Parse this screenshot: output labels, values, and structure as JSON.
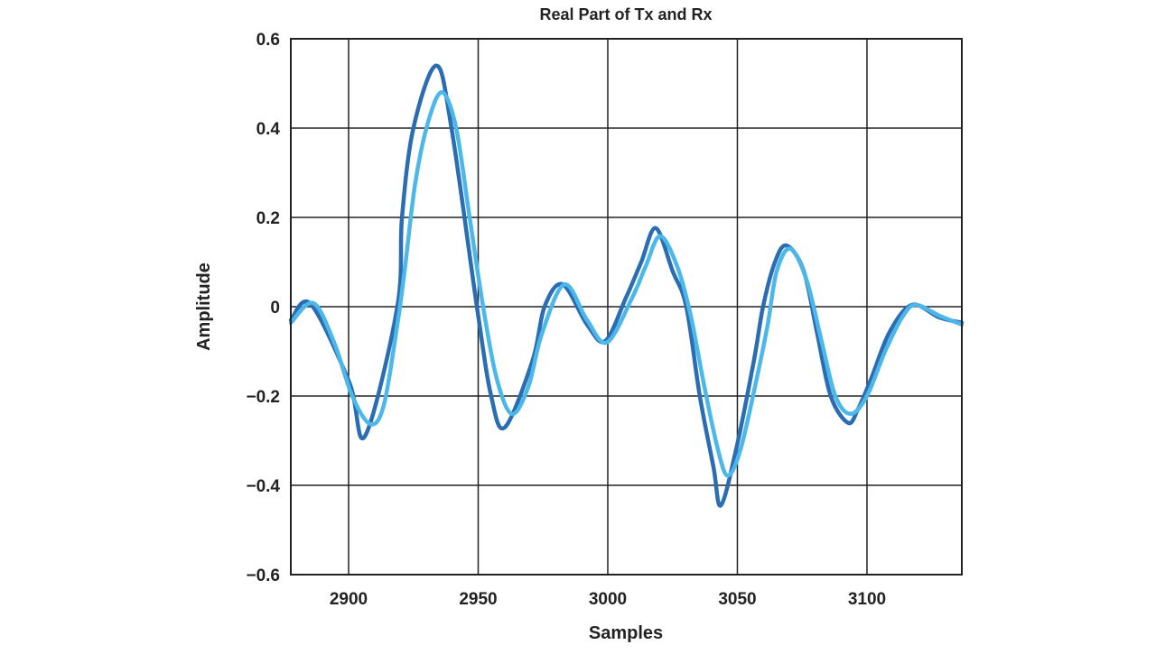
{
  "chart_data": {
    "type": "line",
    "title": "Real Part of Tx and Rx",
    "xlabel": "Samples",
    "ylabel": "Amplitude",
    "xlim": [
      2877.7,
      3136.6
    ],
    "ylim": [
      -0.6,
      0.6
    ],
    "grid": true,
    "xticks": [
      2900,
      2950,
      3000,
      3050,
      3100
    ],
    "xtick_labels": [
      "2900",
      "2950",
      "3000",
      "3050",
      "3100"
    ],
    "yticks": [
      0.6,
      0.4,
      0.2,
      0,
      -0.2,
      -0.4,
      -0.6
    ],
    "ytick_labels": [
      "0.6",
      "0.4",
      "0.2",
      "0",
      "−0.2",
      "−0.4",
      "−0.6"
    ],
    "series": [
      {
        "color": "#2a6db3",
        "x": [
          2877.7,
          2885.4,
          2900.3,
          2906.3,
          2918.8,
          2920.6,
          2925,
          2933.8,
          2939.7,
          2949.5,
          2955,
          2960.3,
          2971,
          2975.6,
          2982.6,
          2992,
          2999,
          3007,
          3012.9,
          3018.5,
          3025,
          3030.3,
          3035.5,
          3040.8,
          3043.6,
          3049.5,
          3056.4,
          3059.9,
          3064.5,
          3069,
          3075.6,
          3080.8,
          3086,
          3092.7,
          3096.5,
          3101.7,
          3108.7,
          3117.4,
          3127.9,
          3136.6
        ],
        "y": [
          -0.03,
          0.006,
          -0.17,
          -0.29,
          0,
          0.2,
          0.4,
          0.54,
          0.4,
          0,
          -0.2,
          -0.27,
          -0.12,
          0,
          0.05,
          -0.04,
          -0.077,
          0.02,
          0.1,
          0.176,
          0.08,
          0,
          -0.2,
          -0.36,
          -0.445,
          -0.32,
          -0.12,
          0,
          0.1,
          0.137,
          0.08,
          -0.06,
          -0.2,
          -0.26,
          -0.23,
          -0.16,
          -0.057,
          0.004,
          -0.024,
          -0.036
        ]
      },
      {
        "color": "#4cb7e9",
        "x": [
          2877.7,
          2886.4,
          2894.4,
          2901.4,
          2908.4,
          2913.6,
          2918.8,
          2921.6,
          2925.8,
          2931,
          2936.2,
          2941.5,
          2946.7,
          2951.9,
          2957.1,
          2963,
          2969.3,
          2974.6,
          2983.3,
          2992,
          2999.7,
          3009.4,
          3014.6,
          3020.2,
          3026.8,
          3032,
          3037.3,
          3042.5,
          3046.3,
          3051.2,
          3057.5,
          3061.7,
          3065.2,
          3070.4,
          3076.7,
          3082.6,
          3087.8,
          3093.7,
          3100,
          3107,
          3114,
          3119,
          3127.9,
          3136.6
        ],
        "y": [
          -0.036,
          0.008,
          -0.08,
          -0.2,
          -0.263,
          -0.22,
          -0.04,
          0.08,
          0.28,
          0.42,
          0.48,
          0.4,
          0.2,
          0,
          -0.16,
          -0.24,
          -0.18,
          -0.06,
          0.05,
          -0.03,
          -0.08,
          0.02,
          0.09,
          0.158,
          0.09,
          -0.02,
          -0.18,
          -0.32,
          -0.378,
          -0.32,
          -0.16,
          -0.04,
          0.08,
          0.13,
          0.06,
          -0.08,
          -0.2,
          -0.24,
          -0.2,
          -0.1,
          -0.02,
          0.004,
          -0.02,
          -0.04
        ]
      }
    ]
  }
}
